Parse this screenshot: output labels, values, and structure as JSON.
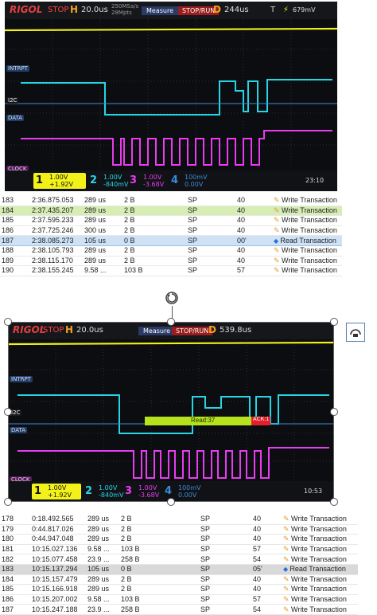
{
  "scope1": {
    "logo": "RIGOL",
    "run_state": "STOP",
    "h_key": "H",
    "timebase": "20.0us",
    "sample_rate": "250MSa/s",
    "mem_depth": "28Mpts",
    "measure_label": "Measure",
    "stoprun_label": "STOP/RUN",
    "d_key": "D",
    "delay": "244us",
    "t_key": "T",
    "trig_level": "679mV",
    "ch_labels": [
      "INTRPT",
      "I2C",
      "DATA",
      "CLOCK"
    ],
    "channels": [
      {
        "num": "1",
        "v1": "1.00V",
        "v2": "+1.92V"
      },
      {
        "num": "2",
        "v1": "1.00V",
        "v2": "-840mV"
      },
      {
        "num": "3",
        "v1": "1.00V",
        "v2": "-3.68V"
      },
      {
        "num": "4",
        "v1": "100mV",
        "v2": "0.00V"
      }
    ],
    "clock": "23:10"
  },
  "table1": [
    {
      "idx": "183",
      "time": "2:36.875.053",
      "dur": "289 us",
      "size": "2 B",
      "type": "SP",
      "addr": "40",
      "desc": "Write Transaction",
      "style": ""
    },
    {
      "idx": "184",
      "time": "2:37.435.207",
      "dur": "289 us",
      "size": "2 B",
      "type": "SP",
      "addr": "40",
      "desc": "Write Transaction",
      "style": "green"
    },
    {
      "idx": "185",
      "time": "2:37.595.233",
      "dur": "289 us",
      "size": "2 B",
      "type": "SP",
      "addr": "40",
      "desc": "Write Transaction",
      "style": ""
    },
    {
      "idx": "186",
      "time": "2:37.725.246",
      "dur": "300 us",
      "size": "2 B",
      "type": "SP",
      "addr": "40",
      "desc": "Write Transaction",
      "style": ""
    },
    {
      "idx": "187",
      "time": "2:38.085.273",
      "dur": "105 us",
      "size": "0 B",
      "type": "SP",
      "addr": "00'",
      "desc": "Read Transaction",
      "style": "blue"
    },
    {
      "idx": "188",
      "time": "2:38.105.793",
      "dur": "289 us",
      "size": "2 B",
      "type": "SP",
      "addr": "40",
      "desc": "Write Transaction",
      "style": ""
    },
    {
      "idx": "189",
      "time": "2:38.115.170",
      "dur": "289 us",
      "size": "2 B",
      "type": "SP",
      "addr": "40",
      "desc": "Write Transaction",
      "style": ""
    },
    {
      "idx": "190",
      "time": "2:38.155.245",
      "dur": "9.58 ...",
      "size": "103 B",
      "type": "SP",
      "addr": "57",
      "desc": "Write Transaction",
      "style": ""
    }
  ],
  "scope2": {
    "logo": "RIGOL",
    "run_state": "STOP",
    "h_key": "H",
    "timebase": "20.0us",
    "measure_label": "Measure",
    "stoprun_label": "STOP/RUN",
    "d_key": "D",
    "delay": "539.8us",
    "ch_labels": [
      "INTRPT",
      "I2C",
      "DATA",
      "CLOCK"
    ],
    "decode_read": "Read:37",
    "decode_ack": "ACK:1",
    "channels": [
      {
        "num": "1",
        "v1": "1.00V",
        "v2": "+1.92V"
      },
      {
        "num": "2",
        "v1": "1.00V",
        "v2": "-840mV"
      },
      {
        "num": "3",
        "v1": "1.00V",
        "v2": "-3.68V"
      },
      {
        "num": "4",
        "v1": "100mV",
        "v2": "0.00V"
      }
    ],
    "clock": "10:53"
  },
  "table2": [
    {
      "idx": "178",
      "time": "0:18.492.565",
      "dur": "289 us",
      "size": "2 B",
      "type": "SP",
      "addr": "40",
      "desc": "Write Transaction",
      "style": ""
    },
    {
      "idx": "179",
      "time": "0:44.817.026",
      "dur": "289 us",
      "size": "2 B",
      "type": "SP",
      "addr": "40",
      "desc": "Write Transaction",
      "style": ""
    },
    {
      "idx": "180",
      "time": "0:44.947.048",
      "dur": "289 us",
      "size": "2 B",
      "type": "SP",
      "addr": "40",
      "desc": "Write Transaction",
      "style": ""
    },
    {
      "idx": "181",
      "time": "10:15.027.136",
      "dur": "9.58 ...",
      "size": "103 B",
      "type": "SP",
      "addr": "57",
      "desc": "Write Transaction",
      "style": ""
    },
    {
      "idx": "182",
      "time": "10:15.077.458",
      "dur": "23.9 ...",
      "size": "258 B",
      "type": "SP",
      "addr": "54",
      "desc": "Write Transaction",
      "style": ""
    },
    {
      "idx": "183",
      "time": "10:15.137.294",
      "dur": "105 us",
      "size": "0 B",
      "type": "SP",
      "addr": "05'",
      "desc": "Read Transaction",
      "style": "grey"
    },
    {
      "idx": "184",
      "time": "10:15.157.479",
      "dur": "289 us",
      "size": "2 B",
      "type": "SP",
      "addr": "40",
      "desc": "Write Transaction",
      "style": ""
    },
    {
      "idx": "185",
      "time": "10:15.166.918",
      "dur": "289 us",
      "size": "2 B",
      "type": "SP",
      "addr": "40",
      "desc": "Write Transaction",
      "style": ""
    },
    {
      "idx": "186",
      "time": "10:15.207.002",
      "dur": "9.58 ...",
      "size": "103 B",
      "type": "SP",
      "addr": "57",
      "desc": "Write Transaction",
      "style": ""
    },
    {
      "idx": "187",
      "time": "10:15.247.188",
      "dur": "23.9 ...",
      "size": "258 B",
      "type": "SP",
      "addr": "54",
      "desc": "Write Transaction",
      "style": ""
    }
  ],
  "colors": {
    "ch1": "#f2f21a",
    "ch2": "#25d6e6",
    "ch3": "#e83cf0",
    "ch4": "#3b8ad8",
    "decode": "#b6e21c"
  }
}
